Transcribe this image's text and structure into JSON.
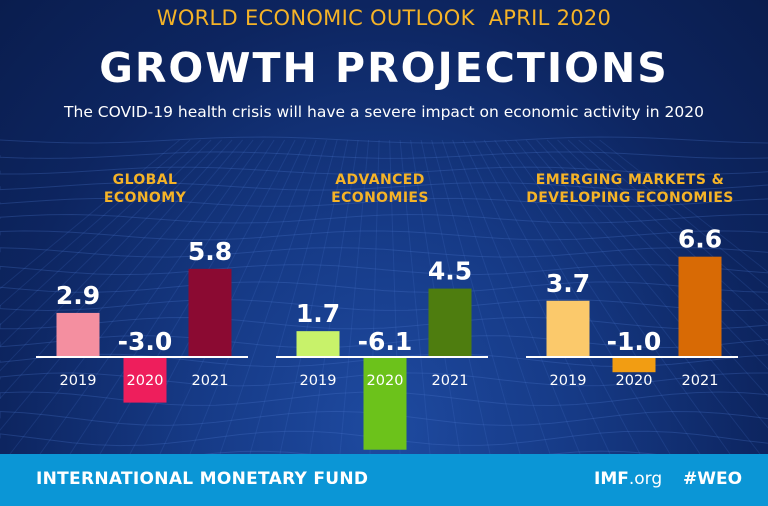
{
  "header": {
    "kicker": "WORLD ECONOMIC OUTLOOK  APRIL 2020",
    "title": "GROWTH PROJECTIONS",
    "subtitle": "The COVID-19 health crisis will have a severe impact on economic activity in 2020"
  },
  "chart_data": [
    {
      "type": "bar",
      "title": "GLOBAL ECONOMY",
      "categories": [
        "2019",
        "2020",
        "2021"
      ],
      "values": [
        2.9,
        -3.0,
        5.8
      ],
      "value_labels": [
        "2.9",
        "-3.0",
        "5.8"
      ],
      "colors": [
        "#f48fa0",
        "#ee1e5c",
        "#8b0a32"
      ],
      "xlabel": "",
      "ylabel": ""
    },
    {
      "type": "bar",
      "title": "ADVANCED ECONOMIES",
      "categories": [
        "2019",
        "2020",
        "2021"
      ],
      "values": [
        1.7,
        -6.1,
        4.5
      ],
      "value_labels": [
        "1.7",
        "-6.1",
        "4.5"
      ],
      "colors": [
        "#c8f26a",
        "#6cc21b",
        "#4e7d0f"
      ],
      "xlabel": "",
      "ylabel": ""
    },
    {
      "type": "bar",
      "title": "EMERGING MARKETS & DEVELOPING ECONOMIES",
      "categories": [
        "2019",
        "2020",
        "2021"
      ],
      "values": [
        3.7,
        -1.0,
        6.6
      ],
      "value_labels": [
        "3.7",
        "-1.0",
        "6.6"
      ],
      "colors": [
        "#fbc96b",
        "#f29d12",
        "#d86a05"
      ],
      "xlabel": "",
      "ylabel": ""
    }
  ],
  "panels": [
    {
      "title_line1": "GLOBAL",
      "title_line2": "ECONOMY"
    },
    {
      "title_line1": "ADVANCED",
      "title_line2": "ECONOMIES"
    },
    {
      "title_line1": "EMERGING MARKETS &",
      "title_line2": "DEVELOPING ECONOMIES"
    }
  ],
  "footer": {
    "org": "INTERNATIONAL MONETARY FUND",
    "site_main": "IMF",
    "site_suffix": ".org",
    "hashtag": "#WEO"
  },
  "colors": {
    "background": "#0b1f52",
    "accent": "#f5b327",
    "footer": "#0b96d6"
  }
}
